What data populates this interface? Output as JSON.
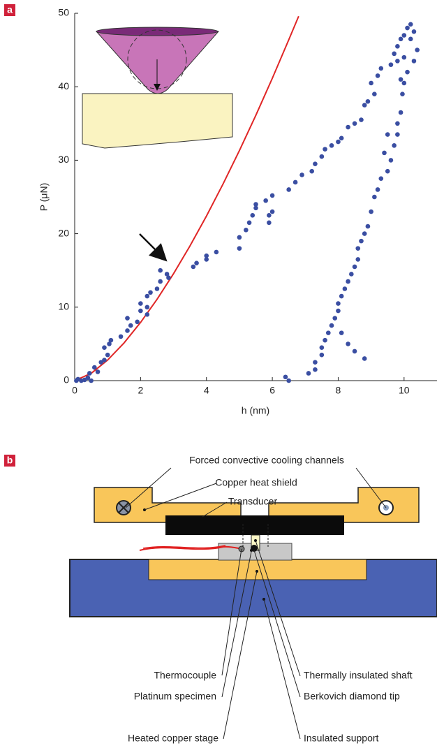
{
  "panel_labels": [
    "a",
    "b"
  ],
  "chart_data": {
    "type": "scatter",
    "xlabel": "h (nm)",
    "ylabel": "P (μN)",
    "xlim": [
      0,
      11
    ],
    "ylim": [
      0,
      50
    ],
    "xticks": [
      0,
      2,
      4,
      6,
      8,
      10
    ],
    "yticks": [
      0,
      10,
      20,
      30,
      40,
      50
    ],
    "series": [
      {
        "type": "line",
        "color": "#e02626",
        "x": [
          0,
          0.5,
          1,
          1.5,
          2,
          2.5,
          3,
          3.5,
          4,
          4.5,
          5,
          5.5,
          6,
          6.5,
          6.8
        ],
        "values": [
          0,
          0.99,
          2.8,
          5.14,
          7.92,
          11.07,
          14.55,
          18.33,
          22.4,
          26.73,
          31.3,
          36.12,
          41.15,
          46.4,
          49.6
        ]
      },
      {
        "type": "scatter",
        "color": "#3a4ea2",
        "x": [
          0.05,
          0.1,
          0.2,
          0.3,
          0.4,
          0.5,
          0.45,
          0.6,
          0.7,
          0.8,
          0.9,
          1,
          0.9,
          1.1,
          1.05,
          1.4,
          1.6,
          1.7,
          1.6,
          1.9,
          2,
          2,
          2.2,
          2.2,
          2.2,
          2.3,
          2.5,
          2.6,
          2.6,
          2.8,
          2.85,
          3.6,
          3.7,
          4,
          4,
          4.3,
          5,
          5,
          5.2,
          5.3,
          5.4,
          5.5,
          5.5,
          5.9,
          5.9,
          5.8,
          6,
          6,
          6.5,
          6.7,
          6.9,
          7.2,
          7.3,
          7.5,
          7.6,
          7.8,
          8,
          8.1,
          8.3,
          8.5,
          8.7,
          8.8,
          8.9,
          9.1,
          9,
          9.2,
          9.3,
          9.6,
          9.7,
          9.8,
          9.9,
          10,
          10.1,
          10.2,
          10.3,
          10.4,
          10.3,
          10.1,
          10,
          9.95,
          9.9,
          9.8,
          9.8,
          9.7,
          9.6,
          9.5,
          9.3,
          9.2,
          9.1,
          9,
          8.9,
          8.8,
          8.7,
          8.6,
          8.6,
          8.5,
          8.4,
          8.3,
          8.2,
          8.1,
          8,
          8,
          7.9,
          7.8,
          7.7,
          7.6,
          7.5,
          7.5,
          7.3,
          7.3,
          7.1,
          6.4,
          6.5,
          8.8,
          8.5,
          8.3,
          8.1,
          9.5,
          9.4,
          10,
          9.8,
          10.2,
          9.9
        ],
        "values": [
          0,
          0.2,
          0,
          0.1,
          0.4,
          0,
          1,
          1.8,
          1.2,
          2.5,
          2.8,
          3.5,
          4.5,
          5.5,
          5,
          6,
          6.8,
          7.5,
          8.5,
          8,
          9.5,
          10.5,
          9,
          10,
          11.5,
          12,
          12.5,
          13.5,
          15,
          14.5,
          14,
          15.5,
          16,
          16.5,
          17,
          17.5,
          18,
          19.5,
          20.5,
          21.5,
          22.5,
          23.5,
          24,
          21.5,
          22.5,
          24.5,
          23,
          25.2,
          26,
          27,
          28,
          28.5,
          29.5,
          30.5,
          31.5,
          32,
          32.5,
          33,
          34.5,
          35,
          35.5,
          37.5,
          38,
          39,
          40.5,
          41.5,
          42.5,
          43,
          44.5,
          45.5,
          46.5,
          47,
          48,
          48.5,
          47.5,
          45,
          43.5,
          42,
          40.5,
          39,
          36.5,
          35,
          33.5,
          32,
          30,
          28.5,
          27.5,
          26,
          25,
          23,
          21,
          20,
          19,
          18,
          16.5,
          15.5,
          14.5,
          13.5,
          12.5,
          11.5,
          10.5,
          9.5,
          8.5,
          7.5,
          6.5,
          5.5,
          4.5,
          3.5,
          2.5,
          1.5,
          1,
          0.5,
          0,
          3,
          4,
          5,
          6.5,
          33.5,
          31,
          44,
          43.5,
          46.5,
          41
        ]
      }
    ]
  },
  "diagram": {
    "labels": [
      "Forced convective cooling channels",
      "Copper heat shield",
      "Transducer",
      "Thermocouple",
      "Platinum specimen",
      "Heated copper stage",
      "Thermally insulated shaft",
      "Berkovich diamond tip",
      "Insulated support"
    ]
  }
}
